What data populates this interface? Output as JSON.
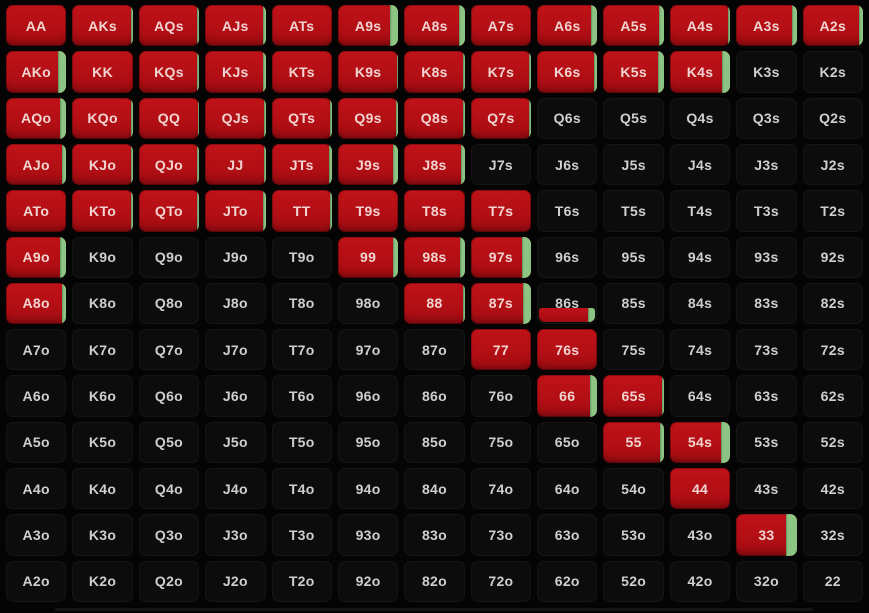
{
  "colors": {
    "raise": "#b30f15",
    "raise_hi": "#bf1218",
    "raise_lo": "#a00c11",
    "call": "#8cc583",
    "fold_bg": "#0c0c0c",
    "page_bg": "#040404",
    "text_on_raise": "#f2d4d1",
    "text_on_fold": "#cfcfcf"
  },
  "grid": {
    "rows": [
      [
        {
          "hand": "AA",
          "action": "raise",
          "call_pct": 0
        },
        {
          "hand": "AKs",
          "action": "raise",
          "call_pct": 3
        },
        {
          "hand": "AQs",
          "action": "raise",
          "call_pct": 3
        },
        {
          "hand": "AJs",
          "action": "raise",
          "call_pct": 4
        },
        {
          "hand": "ATs",
          "action": "raise",
          "call_pct": 0
        },
        {
          "hand": "A9s",
          "action": "raise",
          "call_pct": 13
        },
        {
          "hand": "A8s",
          "action": "raise",
          "call_pct": 10
        },
        {
          "hand": "A7s",
          "action": "raise",
          "call_pct": 0
        },
        {
          "hand": "A6s",
          "action": "raise",
          "call_pct": 10
        },
        {
          "hand": "A5s",
          "action": "raise",
          "call_pct": 8
        },
        {
          "hand": "A4s",
          "action": "raise",
          "call_pct": 3
        },
        {
          "hand": "A3s",
          "action": "raise",
          "call_pct": 8
        },
        {
          "hand": "A2s",
          "action": "raise",
          "call_pct": 7
        }
      ],
      [
        {
          "hand": "AKo",
          "action": "raise",
          "call_pct": 14
        },
        {
          "hand": "KK",
          "action": "raise",
          "call_pct": 0
        },
        {
          "hand": "KQs",
          "action": "raise",
          "call_pct": 3
        },
        {
          "hand": "KJs",
          "action": "raise",
          "call_pct": 5
        },
        {
          "hand": "KTs",
          "action": "raise",
          "call_pct": 0
        },
        {
          "hand": "K9s",
          "action": "raise",
          "call_pct": 3
        },
        {
          "hand": "K8s",
          "action": "raise",
          "call_pct": 3
        },
        {
          "hand": "K7s",
          "action": "raise",
          "call_pct": 4
        },
        {
          "hand": "K6s",
          "action": "raise",
          "call_pct": 5
        },
        {
          "hand": "K5s",
          "action": "raise",
          "call_pct": 10
        },
        {
          "hand": "K4s",
          "action": "raise",
          "call_pct": 13
        },
        {
          "hand": "K3s",
          "action": "fold",
          "call_pct": 0
        },
        {
          "hand": "K2s",
          "action": "fold",
          "call_pct": 0
        }
      ],
      [
        {
          "hand": "AQo",
          "action": "raise",
          "call_pct": 10
        },
        {
          "hand": "KQo",
          "action": "raise",
          "call_pct": 3
        },
        {
          "hand": "QQ",
          "action": "raise",
          "call_pct": 2
        },
        {
          "hand": "QJs",
          "action": "raise",
          "call_pct": 3
        },
        {
          "hand": "QTs",
          "action": "raise",
          "call_pct": 3
        },
        {
          "hand": "Q9s",
          "action": "raise",
          "call_pct": 4
        },
        {
          "hand": "Q8s",
          "action": "raise",
          "call_pct": 3
        },
        {
          "hand": "Q7s",
          "action": "raise",
          "call_pct": 4
        },
        {
          "hand": "Q6s",
          "action": "fold",
          "call_pct": 0
        },
        {
          "hand": "Q5s",
          "action": "fold",
          "call_pct": 0
        },
        {
          "hand": "Q4s",
          "action": "fold",
          "call_pct": 0
        },
        {
          "hand": "Q3s",
          "action": "fold",
          "call_pct": 0
        },
        {
          "hand": "Q2s",
          "action": "fold",
          "call_pct": 0
        }
      ],
      [
        {
          "hand": "AJo",
          "action": "raise",
          "call_pct": 8
        },
        {
          "hand": "KJo",
          "action": "raise",
          "call_pct": 3
        },
        {
          "hand": "QJo",
          "action": "raise",
          "call_pct": 3
        },
        {
          "hand": "JJ",
          "action": "raise",
          "call_pct": 2
        },
        {
          "hand": "JTs",
          "action": "raise",
          "call_pct": 5
        },
        {
          "hand": "J9s",
          "action": "raise",
          "call_pct": 8
        },
        {
          "hand": "J8s",
          "action": "raise",
          "call_pct": 6
        },
        {
          "hand": "J7s",
          "action": "fold",
          "call_pct": 0
        },
        {
          "hand": "J6s",
          "action": "fold",
          "call_pct": 0
        },
        {
          "hand": "J5s",
          "action": "fold",
          "call_pct": 0
        },
        {
          "hand": "J4s",
          "action": "fold",
          "call_pct": 0
        },
        {
          "hand": "J3s",
          "action": "fold",
          "call_pct": 0
        },
        {
          "hand": "J2s",
          "action": "fold",
          "call_pct": 0
        }
      ],
      [
        {
          "hand": "ATo",
          "action": "raise",
          "call_pct": 0
        },
        {
          "hand": "KTo",
          "action": "raise",
          "call_pct": 3
        },
        {
          "hand": "QTo",
          "action": "raise",
          "call_pct": 4
        },
        {
          "hand": "JTo",
          "action": "raise",
          "call_pct": 5
        },
        {
          "hand": "TT",
          "action": "raise",
          "call_pct": 3
        },
        {
          "hand": "T9s",
          "action": "raise",
          "call_pct": 0
        },
        {
          "hand": "T8s",
          "action": "raise",
          "call_pct": 0
        },
        {
          "hand": "T7s",
          "action": "raise",
          "call_pct": 0
        },
        {
          "hand": "T6s",
          "action": "fold",
          "call_pct": 0
        },
        {
          "hand": "T5s",
          "action": "fold",
          "call_pct": 0
        },
        {
          "hand": "T4s",
          "action": "fold",
          "call_pct": 0
        },
        {
          "hand": "T3s",
          "action": "fold",
          "call_pct": 0
        },
        {
          "hand": "T2s",
          "action": "fold",
          "call_pct": 0
        }
      ],
      [
        {
          "hand": "A9o",
          "action": "raise",
          "call_pct": 10
        },
        {
          "hand": "K9o",
          "action": "fold",
          "call_pct": 0
        },
        {
          "hand": "Q9o",
          "action": "fold",
          "call_pct": 0
        },
        {
          "hand": "J9o",
          "action": "fold",
          "call_pct": 0
        },
        {
          "hand": "T9o",
          "action": "fold",
          "call_pct": 0
        },
        {
          "hand": "99",
          "action": "raise",
          "call_pct": 8
        },
        {
          "hand": "98s",
          "action": "raise",
          "call_pct": 7
        },
        {
          "hand": "97s",
          "action": "raise",
          "call_pct": 15
        },
        {
          "hand": "96s",
          "action": "fold",
          "call_pct": 0
        },
        {
          "hand": "95s",
          "action": "fold",
          "call_pct": 0
        },
        {
          "hand": "94s",
          "action": "fold",
          "call_pct": 0
        },
        {
          "hand": "93s",
          "action": "fold",
          "call_pct": 0
        },
        {
          "hand": "92s",
          "action": "fold",
          "call_pct": 0
        }
      ],
      [
        {
          "hand": "A8o",
          "action": "raise",
          "call_pct": 8
        },
        {
          "hand": "K8o",
          "action": "fold",
          "call_pct": 0
        },
        {
          "hand": "Q8o",
          "action": "fold",
          "call_pct": 0
        },
        {
          "hand": "J8o",
          "action": "fold",
          "call_pct": 0
        },
        {
          "hand": "T8o",
          "action": "fold",
          "call_pct": 0
        },
        {
          "hand": "98o",
          "action": "fold",
          "call_pct": 0
        },
        {
          "hand": "88",
          "action": "raise",
          "call_pct": 3
        },
        {
          "hand": "87s",
          "action": "raise",
          "call_pct": 13
        },
        {
          "hand": "86s",
          "action": "mixed",
          "weight_pct": 35,
          "call_pct": 13
        },
        {
          "hand": "85s",
          "action": "fold",
          "call_pct": 0
        },
        {
          "hand": "84s",
          "action": "fold",
          "call_pct": 0
        },
        {
          "hand": "83s",
          "action": "fold",
          "call_pct": 0
        },
        {
          "hand": "82s",
          "action": "fold",
          "call_pct": 0
        }
      ],
      [
        {
          "hand": "A7o",
          "action": "fold",
          "call_pct": 0
        },
        {
          "hand": "K7o",
          "action": "fold",
          "call_pct": 0
        },
        {
          "hand": "Q7o",
          "action": "fold",
          "call_pct": 0
        },
        {
          "hand": "J7o",
          "action": "fold",
          "call_pct": 0
        },
        {
          "hand": "T7o",
          "action": "fold",
          "call_pct": 0
        },
        {
          "hand": "97o",
          "action": "fold",
          "call_pct": 0
        },
        {
          "hand": "87o",
          "action": "fold",
          "call_pct": 0
        },
        {
          "hand": "77",
          "action": "raise",
          "call_pct": 0
        },
        {
          "hand": "76s",
          "action": "raise",
          "call_pct": 0
        },
        {
          "hand": "75s",
          "action": "fold",
          "call_pct": 0
        },
        {
          "hand": "74s",
          "action": "fold",
          "call_pct": 0
        },
        {
          "hand": "73s",
          "action": "fold",
          "call_pct": 0
        },
        {
          "hand": "72s",
          "action": "fold",
          "call_pct": 0
        }
      ],
      [
        {
          "hand": "A6o",
          "action": "fold",
          "call_pct": 0
        },
        {
          "hand": "K6o",
          "action": "fold",
          "call_pct": 0
        },
        {
          "hand": "Q6o",
          "action": "fold",
          "call_pct": 0
        },
        {
          "hand": "J6o",
          "action": "fold",
          "call_pct": 0
        },
        {
          "hand": "T6o",
          "action": "fold",
          "call_pct": 0
        },
        {
          "hand": "96o",
          "action": "fold",
          "call_pct": 0
        },
        {
          "hand": "86o",
          "action": "fold",
          "call_pct": 0
        },
        {
          "hand": "76o",
          "action": "fold",
          "call_pct": 0
        },
        {
          "hand": "66",
          "action": "raise",
          "call_pct": 12
        },
        {
          "hand": "65s",
          "action": "raise",
          "call_pct": 3
        },
        {
          "hand": "64s",
          "action": "fold",
          "call_pct": 0
        },
        {
          "hand": "63s",
          "action": "fold",
          "call_pct": 0
        },
        {
          "hand": "62s",
          "action": "fold",
          "call_pct": 0
        }
      ],
      [
        {
          "hand": "A5o",
          "action": "fold",
          "call_pct": 0
        },
        {
          "hand": "K5o",
          "action": "fold",
          "call_pct": 0
        },
        {
          "hand": "Q5o",
          "action": "fold",
          "call_pct": 0
        },
        {
          "hand": "J5o",
          "action": "fold",
          "call_pct": 0
        },
        {
          "hand": "T5o",
          "action": "fold",
          "call_pct": 0
        },
        {
          "hand": "95o",
          "action": "fold",
          "call_pct": 0
        },
        {
          "hand": "85o",
          "action": "fold",
          "call_pct": 0
        },
        {
          "hand": "75o",
          "action": "fold",
          "call_pct": 0
        },
        {
          "hand": "65o",
          "action": "fold",
          "call_pct": 0
        },
        {
          "hand": "55",
          "action": "raise",
          "call_pct": 6
        },
        {
          "hand": "54s",
          "action": "raise",
          "call_pct": 16
        },
        {
          "hand": "53s",
          "action": "fold",
          "call_pct": 0
        },
        {
          "hand": "52s",
          "action": "fold",
          "call_pct": 0
        }
      ],
      [
        {
          "hand": "A4o",
          "action": "fold",
          "call_pct": 0
        },
        {
          "hand": "K4o",
          "action": "fold",
          "call_pct": 0
        },
        {
          "hand": "Q4o",
          "action": "fold",
          "call_pct": 0
        },
        {
          "hand": "J4o",
          "action": "fold",
          "call_pct": 0
        },
        {
          "hand": "T4o",
          "action": "fold",
          "call_pct": 0
        },
        {
          "hand": "94o",
          "action": "fold",
          "call_pct": 0
        },
        {
          "hand": "84o",
          "action": "fold",
          "call_pct": 0
        },
        {
          "hand": "74o",
          "action": "fold",
          "call_pct": 0
        },
        {
          "hand": "64o",
          "action": "fold",
          "call_pct": 0
        },
        {
          "hand": "54o",
          "action": "fold",
          "call_pct": 0
        },
        {
          "hand": "44",
          "action": "raise",
          "call_pct": 0
        },
        {
          "hand": "43s",
          "action": "fold",
          "call_pct": 0
        },
        {
          "hand": "42s",
          "action": "fold",
          "call_pct": 0
        }
      ],
      [
        {
          "hand": "A3o",
          "action": "fold",
          "call_pct": 0
        },
        {
          "hand": "K3o",
          "action": "fold",
          "call_pct": 0
        },
        {
          "hand": "Q3o",
          "action": "fold",
          "call_pct": 0
        },
        {
          "hand": "J3o",
          "action": "fold",
          "call_pct": 0
        },
        {
          "hand": "T3o",
          "action": "fold",
          "call_pct": 0
        },
        {
          "hand": "93o",
          "action": "fold",
          "call_pct": 0
        },
        {
          "hand": "83o",
          "action": "fold",
          "call_pct": 0
        },
        {
          "hand": "73o",
          "action": "fold",
          "call_pct": 0
        },
        {
          "hand": "63o",
          "action": "fold",
          "call_pct": 0
        },
        {
          "hand": "53o",
          "action": "fold",
          "call_pct": 0
        },
        {
          "hand": "43o",
          "action": "fold",
          "call_pct": 0
        },
        {
          "hand": "33",
          "action": "raise",
          "call_pct": 17
        },
        {
          "hand": "32s",
          "action": "fold",
          "call_pct": 0
        }
      ],
      [
        {
          "hand": "A2o",
          "action": "fold",
          "call_pct": 0
        },
        {
          "hand": "K2o",
          "action": "fold",
          "call_pct": 0
        },
        {
          "hand": "Q2o",
          "action": "fold",
          "call_pct": 0
        },
        {
          "hand": "J2o",
          "action": "fold",
          "call_pct": 0
        },
        {
          "hand": "T2o",
          "action": "fold",
          "call_pct": 0
        },
        {
          "hand": "92o",
          "action": "fold",
          "call_pct": 0
        },
        {
          "hand": "82o",
          "action": "fold",
          "call_pct": 0
        },
        {
          "hand": "72o",
          "action": "fold",
          "call_pct": 0
        },
        {
          "hand": "62o",
          "action": "fold",
          "call_pct": 0
        },
        {
          "hand": "52o",
          "action": "fold",
          "call_pct": 0
        },
        {
          "hand": "42o",
          "action": "fold",
          "call_pct": 0
        },
        {
          "hand": "32o",
          "action": "fold",
          "call_pct": 0
        },
        {
          "hand": "22",
          "action": "fold",
          "call_pct": 0
        }
      ]
    ]
  }
}
